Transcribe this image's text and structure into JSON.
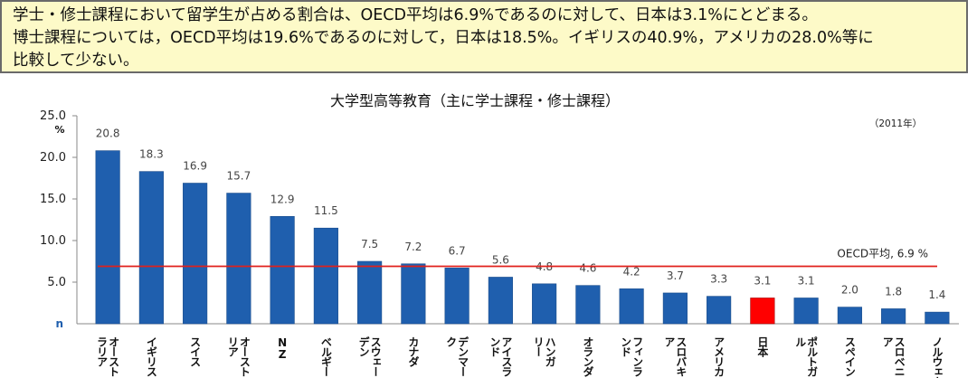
{
  "summary": {
    "lines": [
      "学士・修士課程において留学生が占める割合は、OECD平均は6.9%であるのに対して、日本は3.1%にとどまる。",
      "博士課程については，OECD平均は19.6%であるのに対して，日本は18.5%。イギリスの40.9%，アメリカの28.0%等に",
      "比較して少ない。"
    ]
  },
  "chart_data": {
    "type": "bar",
    "title": "大学型高等教育（主に学士課程・修士課程）",
    "year_note": "（2011年）",
    "y_unit": "%",
    "ylim": [
      0,
      25
    ],
    "yticks": [
      "25.0",
      "20.0",
      "15.0",
      "10.0",
      "5.0"
    ],
    "zero_tick": "n",
    "categories": [
      "オーストラリア",
      "イギリス",
      "スイス",
      "オーストリア",
      "NZ",
      "ベルギー",
      "スウェーデン",
      "カナダ",
      "デンマーク",
      "アイスランド",
      "ハンガリー",
      "オランダ",
      "フィンランド",
      "スロバキア",
      "アメリカ",
      "日本",
      "ポルトガル",
      "スペイン",
      "スロベニア",
      "ノルウェー"
    ],
    "category_label_lines": [
      [
        "オースト",
        "ラリア"
      ],
      [
        "イギリス"
      ],
      [
        "スイス"
      ],
      [
        "オースト",
        "リア"
      ],
      [
        "NZ"
      ],
      [
        "ベルギー"
      ],
      [
        "スウェー",
        "デン"
      ],
      [
        "カナダ"
      ],
      [
        "デンマー",
        "ク"
      ],
      [
        "アイスラ",
        "ンド"
      ],
      [
        "ハンガ",
        "リー"
      ],
      [
        "オランダ"
      ],
      [
        "フィンラ",
        "ンド"
      ],
      [
        "スロバキ",
        "ア"
      ],
      [
        "アメリカ"
      ],
      [
        "日本"
      ],
      [
        "ポルトガ",
        "ル"
      ],
      [
        "スペイン"
      ],
      [
        "スロベニ",
        "ア"
      ],
      [
        "ノルウェー"
      ]
    ],
    "values": [
      20.8,
      18.3,
      16.9,
      15.7,
      12.9,
      11.5,
      7.5,
      7.2,
      6.7,
      5.6,
      4.8,
      4.6,
      4.2,
      3.7,
      3.3,
      3.1,
      3.1,
      2.0,
      1.8,
      1.4
    ],
    "value_labels": [
      "20.8",
      "18.3",
      "16.9",
      "15.7",
      "12.9",
      "11.5",
      "7.5",
      "7.2",
      "6.7",
      "5.6",
      "4.8",
      "4.6",
      "4.2",
      "3.7",
      "3.3",
      "3.1",
      "3.1",
      "2.0",
      "1.8",
      "1.4"
    ],
    "highlight_category": "日本",
    "bar_color": "#1f5fae",
    "highlight_color": "#ff0000",
    "reference_line": {
      "label": "OECD平均, 6.9 %",
      "value": 6.9,
      "color": "#e0201c"
    },
    "grid": false
  }
}
